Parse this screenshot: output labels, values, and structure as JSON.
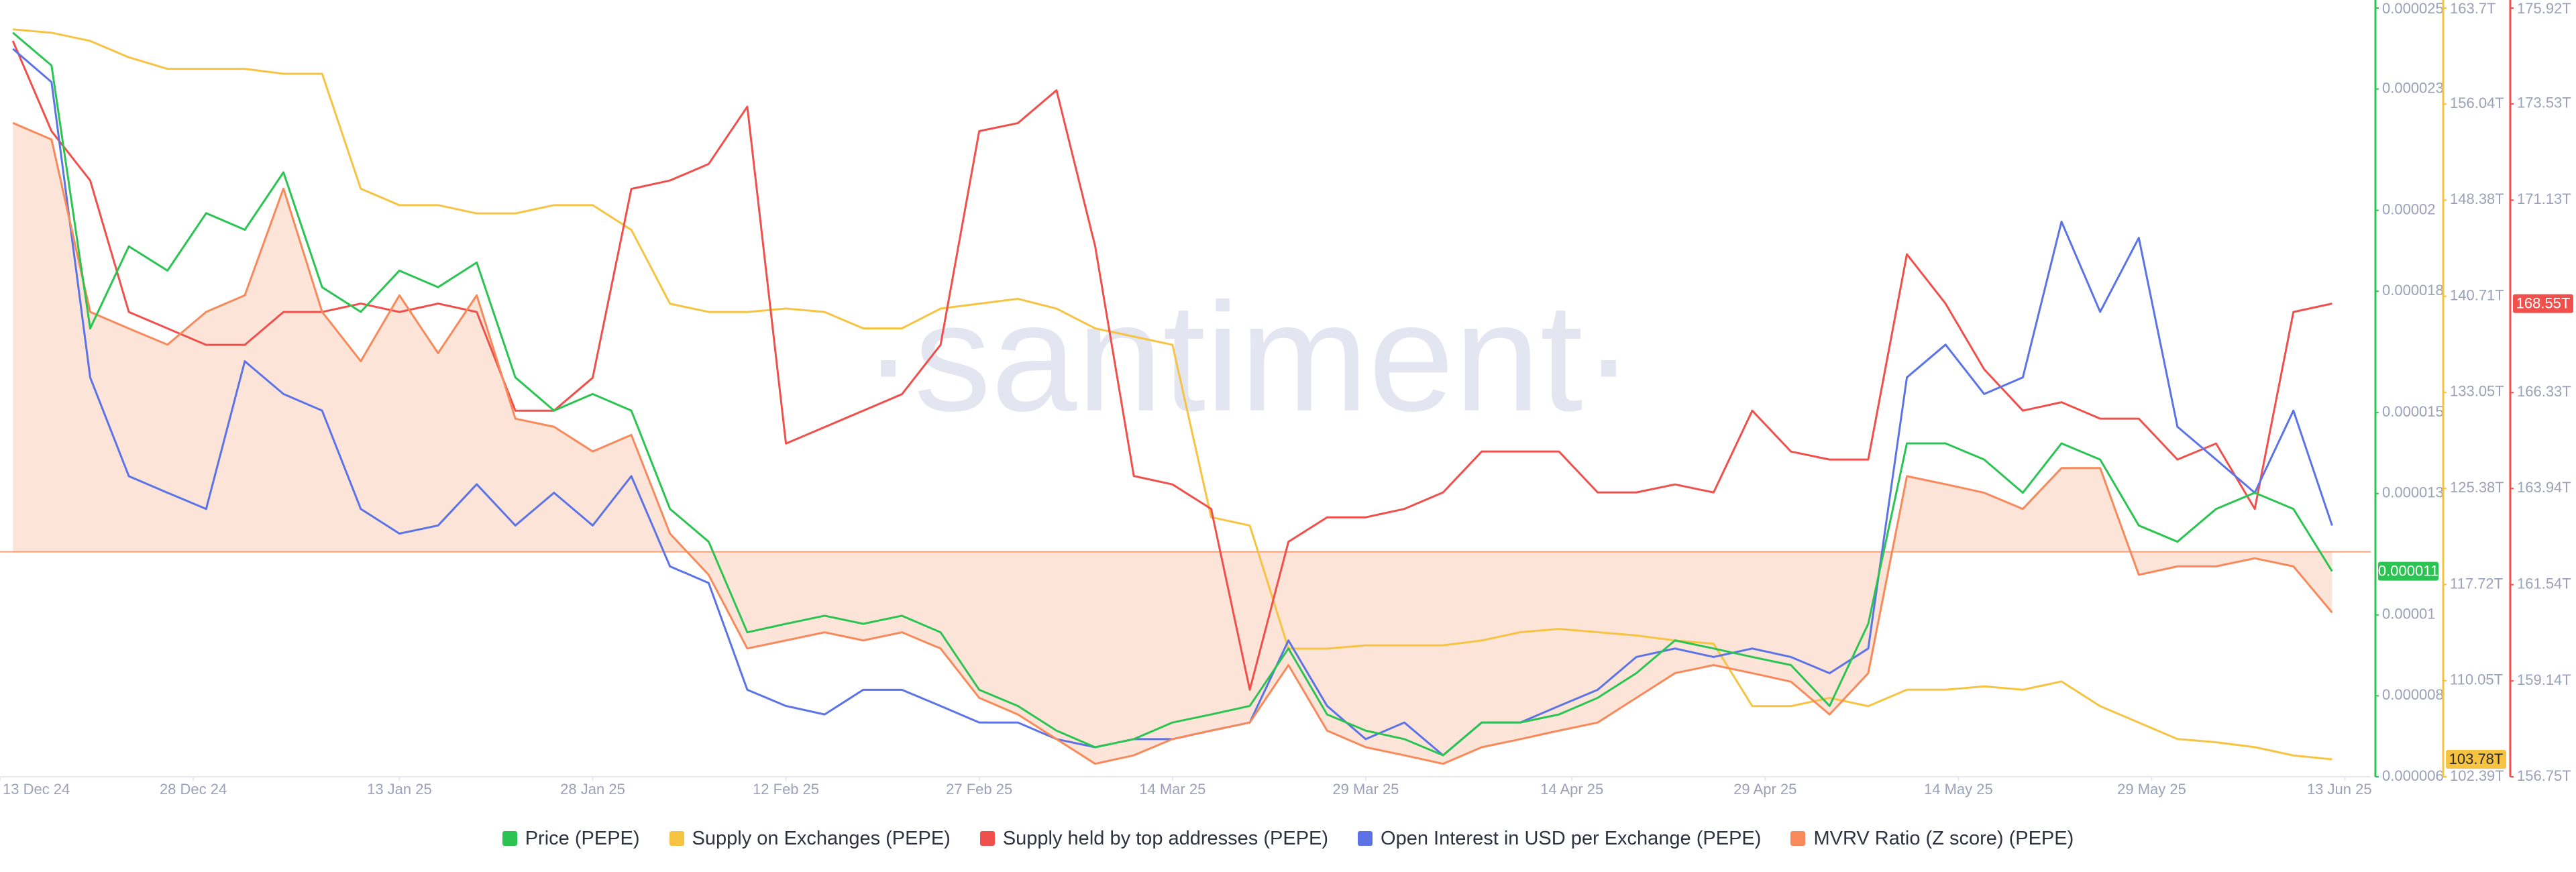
{
  "chart_data": {
    "type": "line",
    "watermark": "·santiment·",
    "x": [
      "2024-12-14",
      "2024-12-17",
      "2024-12-20",
      "2024-12-23",
      "2024-12-26",
      "2024-12-29",
      "2025-01-01",
      "2025-01-04",
      "2025-01-07",
      "2025-01-10",
      "2025-01-13",
      "2025-01-16",
      "2025-01-19",
      "2025-01-22",
      "2025-01-25",
      "2025-01-28",
      "2025-01-31",
      "2025-02-03",
      "2025-02-06",
      "2025-02-09",
      "2025-02-12",
      "2025-02-15",
      "2025-02-18",
      "2025-02-21",
      "2025-02-24",
      "2025-02-27",
      "2025-03-02",
      "2025-03-05",
      "2025-03-08",
      "2025-03-11",
      "2025-03-14",
      "2025-03-17",
      "2025-03-20",
      "2025-03-23",
      "2025-03-26",
      "2025-03-29",
      "2025-04-01",
      "2025-04-04",
      "2025-04-07",
      "2025-04-10",
      "2025-04-13",
      "2025-04-16",
      "2025-04-19",
      "2025-04-22",
      "2025-04-25",
      "2025-04-28",
      "2025-05-01",
      "2025-05-04",
      "2025-05-07",
      "2025-05-10",
      "2025-05-13",
      "2025-05-16",
      "2025-05-19",
      "2025-05-22",
      "2025-05-25",
      "2025-05-28",
      "2025-05-31",
      "2025-06-03",
      "2025-06-06",
      "2025-06-09",
      "2025-06-12"
    ],
    "xlim": [
      "2024-12-13",
      "2025-06-15"
    ],
    "xticks": [
      {
        "value": "2024-12-13",
        "label": "13 Dec 24"
      },
      {
        "value": "2024-12-28",
        "label": "28 Dec 24"
      },
      {
        "value": "2025-01-13",
        "label": "13 Jan 25"
      },
      {
        "value": "2025-01-28",
        "label": "28 Jan 25"
      },
      {
        "value": "2025-02-12",
        "label": "12 Feb 25"
      },
      {
        "value": "2025-02-27",
        "label": "27 Feb 25"
      },
      {
        "value": "2025-03-14",
        "label": "14 Mar 25"
      },
      {
        "value": "2025-03-29",
        "label": "29 Mar 25"
      },
      {
        "value": "2025-04-14",
        "label": "14 Apr 25"
      },
      {
        "value": "2025-04-29",
        "label": "29 Apr 25"
      },
      {
        "value": "2025-05-14",
        "label": "14 May 25"
      },
      {
        "value": "2025-05-29",
        "label": "29 May 25"
      },
      {
        "value": "2025-06-13",
        "label": "13 Jun 25"
      }
    ],
    "ylim": [
      6e-06,
      2.5e-05
    ],
    "yticks": [
      2.5e-05,
      2.3e-05,
      2e-05,
      1.8e-05,
      1.5e-05,
      1.3e-05,
      1e-05,
      8e-06,
      6e-06
    ],
    "y_axis_color": "#2bc452",
    "y2lim": [
      102.39,
      163.7
    ],
    "y2ticks": [
      {
        "value": 163.7,
        "label": "163.7T"
      },
      {
        "value": 156.04,
        "label": "156.04T"
      },
      {
        "value": 148.38,
        "label": "148.38T"
      },
      {
        "value": 140.71,
        "label": "140.71T"
      },
      {
        "value": 133.05,
        "label": "133.05T"
      },
      {
        "value": 125.38,
        "label": "125.38T"
      },
      {
        "value": 117.72,
        "label": "117.72T"
      },
      {
        "value": 110.05,
        "label": "110.05T"
      },
      {
        "value": 102.39,
        "label": "102.39T"
      }
    ],
    "y2_axis_color": "#f6c343",
    "y3lim": [
      156.75,
      175.92
    ],
    "y3ticks": [
      {
        "value": 175.92,
        "label": "175.92T"
      },
      {
        "value": 173.53,
        "label": "173.53T"
      },
      {
        "value": 171.13,
        "label": "171.13T"
      },
      {
        "value": 166.33,
        "label": "166.33T"
      },
      {
        "value": 163.94,
        "label": "163.94T"
      },
      {
        "value": 161.54,
        "label": "161.54T"
      },
      {
        "value": 159.14,
        "label": "159.14T"
      },
      {
        "value": 156.75,
        "label": "156.75T"
      }
    ],
    "y3_axis_color": "#f0504c",
    "series": [
      {
        "name": "Price (PEPE)",
        "color": "#2bc452",
        "axis": "y",
        "current_label": "0.000011",
        "values": [
          2.439e-05,
          2.358e-05,
          1.708e-05,
          1.911e-05,
          1.851e-05,
          1.993e-05,
          1.952e-05,
          2.094e-05,
          1.81e-05,
          1.749e-05,
          1.851e-05,
          1.81e-05,
          1.871e-05,
          1.587e-05,
          1.505e-05,
          1.546e-05,
          1.505e-05,
          1.262e-05,
          1.181e-05,
          9.57e-06,
          9.78e-06,
          9.98e-06,
          9.78e-06,
          9.98e-06,
          9.57e-06,
          8.15e-06,
          7.75e-06,
          7.14e-06,
          6.73e-06,
          6.93e-06,
          7.34e-06,
          7.54e-06,
          7.75e-06,
          9.17e-06,
          7.54e-06,
          7.14e-06,
          6.93e-06,
          6.53e-06,
          7.34e-06,
          7.34e-06,
          7.54e-06,
          7.95e-06,
          8.56e-06,
          9.37e-06,
          9.17e-06,
          8.96e-06,
          8.76e-06,
          7.75e-06,
          9.78e-06,
          1.424e-05,
          1.424e-05,
          1.384e-05,
          1.302e-05,
          1.424e-05,
          1.384e-05,
          1.221e-05,
          1.181e-05,
          1.262e-05,
          1.302e-05,
          1.262e-05,
          1.108e-05
        ]
      },
      {
        "name": "Supply on Exchanges (PEPE)",
        "color": "#f6c343",
        "axis": "y2",
        "current_label": "103.78T",
        "values": [
          162.0,
          161.73,
          161.08,
          159.77,
          158.85,
          158.85,
          158.85,
          158.46,
          158.46,
          149.29,
          147.98,
          147.98,
          147.32,
          147.32,
          147.98,
          147.98,
          146.01,
          140.12,
          139.46,
          139.46,
          139.73,
          139.46,
          138.15,
          138.15,
          139.73,
          140.12,
          140.51,
          139.73,
          138.15,
          137.5,
          136.84,
          123.09,
          122.43,
          112.61,
          112.61,
          112.87,
          112.87,
          112.87,
          113.26,
          113.92,
          114.18,
          113.92,
          113.66,
          113.26,
          113.0,
          108.02,
          108.02,
          108.68,
          108.02,
          109.33,
          109.33,
          109.6,
          109.33,
          109.99,
          108.02,
          106.71,
          105.4,
          105.14,
          104.75,
          104.09,
          103.78
        ]
      },
      {
        "name": "Supply held by top addresses (PEPE)",
        "color": "#f0504c",
        "axis": "y3",
        "current_label": "168.55T",
        "values": [
          175.1,
          172.85,
          171.62,
          168.34,
          167.93,
          167.52,
          167.52,
          168.34,
          168.34,
          168.55,
          168.34,
          168.55,
          168.34,
          165.88,
          165.88,
          166.7,
          171.41,
          171.62,
          172.03,
          173.46,
          165.06,
          165.47,
          165.88,
          166.29,
          167.52,
          172.85,
          173.05,
          173.87,
          169.98,
          164.25,
          164.04,
          163.43,
          158.92,
          162.61,
          163.22,
          163.22,
          163.43,
          163.84,
          164.86,
          164.86,
          164.86,
          163.84,
          163.84,
          164.04,
          163.84,
          165.88,
          164.86,
          164.66,
          164.66,
          169.78,
          168.55,
          166.91,
          165.88,
          166.09,
          165.68,
          165.68,
          164.66,
          165.06,
          163.43,
          168.34,
          168.55
        ]
      },
      {
        "name": "Open Interest in USD per Exchange (PEPE)",
        "color": "#5b73e6",
        "axis": "y",
        "values": [
          2.399e-05,
          2.317e-05,
          1.587e-05,
          1.343e-05,
          1.302e-05,
          1.262e-05,
          1.627e-05,
          1.546e-05,
          1.505e-05,
          1.262e-05,
          1.201e-05,
          1.221e-05,
          1.323e-05,
          1.221e-05,
          1.302e-05,
          1.221e-05,
          1.343e-05,
          1.12e-05,
          1.079e-05,
          8.15e-06,
          7.75e-06,
          7.54e-06,
          8.15e-06,
          8.15e-06,
          7.75e-06,
          7.34e-06,
          7.34e-06,
          6.93e-06,
          6.73e-06,
          6.93e-06,
          6.93e-06,
          7.14e-06,
          7.34e-06,
          9.37e-06,
          7.75e-06,
          6.93e-06,
          7.34e-06,
          6.53e-06,
          7.34e-06,
          7.34e-06,
          7.75e-06,
          8.15e-06,
          8.96e-06,
          9.17e-06,
          8.96e-06,
          9.17e-06,
          8.96e-06,
          8.56e-06,
          9.17e-06,
          1.587e-05,
          1.668e-05,
          1.546e-05,
          1.587e-05,
          1.972e-05,
          1.749e-05,
          1.932e-05,
          1.465e-05,
          1.384e-05,
          1.302e-05,
          1.505e-05,
          1.221e-05
        ]
      },
      {
        "name": "MVRV Ratio (Z score) (PEPE)",
        "color": "#f7895a",
        "axis": "y",
        "area_baseline": 1.156e-05,
        "area_color": "#fde4d8",
        "values": [
          2.216e-05,
          2.175e-05,
          1.749e-05,
          1.708e-05,
          1.668e-05,
          1.749e-05,
          1.79e-05,
          2.054e-05,
          1.749e-05,
          1.627e-05,
          1.79e-05,
          1.647e-05,
          1.79e-05,
          1.485e-05,
          1.465e-05,
          1.404e-05,
          1.445e-05,
          1.201e-05,
          1.099e-05,
          9.17e-06,
          9.37e-06,
          9.57e-06,
          9.37e-06,
          9.57e-06,
          9.17e-06,
          7.95e-06,
          7.54e-06,
          6.93e-06,
          6.32e-06,
          6.53e-06,
          6.93e-06,
          7.14e-06,
          7.34e-06,
          8.76e-06,
          7.14e-06,
          6.73e-06,
          6.53e-06,
          6.32e-06,
          6.73e-06,
          6.93e-06,
          7.14e-06,
          7.34e-06,
          7.95e-06,
          8.56e-06,
          8.76e-06,
          8.56e-06,
          8.35e-06,
          7.54e-06,
          8.56e-06,
          1.343e-05,
          1.323e-05,
          1.302e-05,
          1.262e-05,
          1.363e-05,
          1.363e-05,
          1.099e-05,
          1.12e-05,
          1.12e-05,
          1.14e-05,
          1.12e-05,
          1.006e-05
        ]
      }
    ]
  }
}
